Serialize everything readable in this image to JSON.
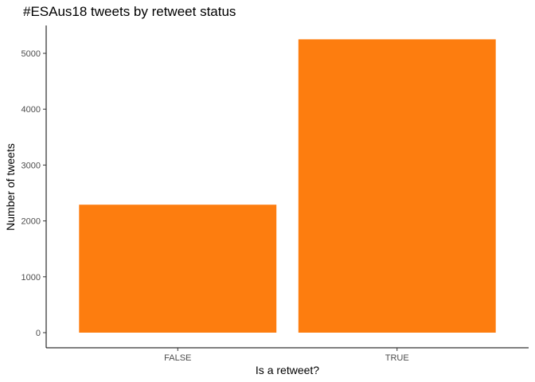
{
  "chart_data": {
    "type": "bar",
    "title": "#ESAus18 tweets by retweet status",
    "xlabel": "Is a retweet?",
    "ylabel": "Number of tweets",
    "categories": [
      "FALSE",
      "TRUE"
    ],
    "values": [
      2290,
      5250
    ],
    "yticks": [
      0,
      1000,
      2000,
      3000,
      4000,
      5000
    ],
    "ylim": [
      0,
      5500
    ],
    "bar_color": "#FD7D0F",
    "grid": false,
    "legend": "none"
  }
}
